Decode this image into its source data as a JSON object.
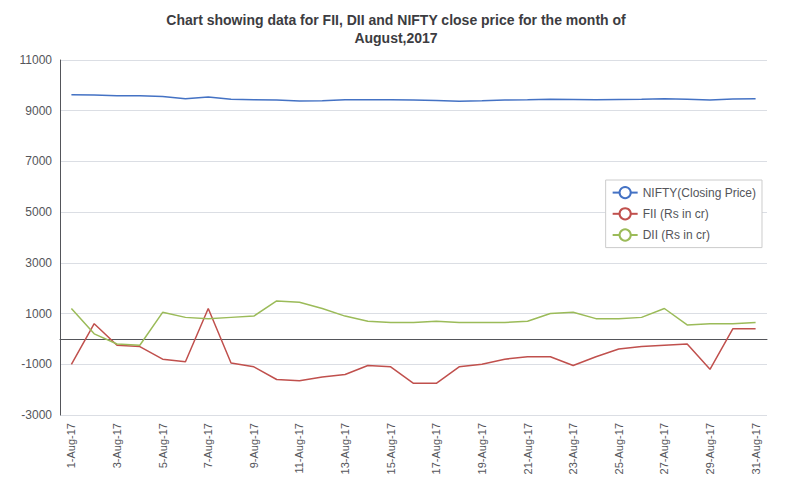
{
  "chart_data": {
    "type": "line",
    "title": "Chart showing data for FII, DII and NIFTY close price for the month of\nAugust,2017",
    "categories": [
      "1-Aug-17",
      null,
      "3-Aug-17",
      null,
      "5-Aug-17",
      null,
      "7-Aug-17",
      null,
      "9-Aug-17",
      null,
      "11-Aug-17",
      null,
      "13-Aug-17",
      null,
      "15-Aug-17",
      null,
      "17-Aug-17",
      null,
      "19-Aug-17",
      null,
      "21-Aug-17",
      null,
      "23-Aug-17",
      null,
      "25-Aug-17",
      null,
      "27-Aug-17",
      null,
      "29-Aug-17",
      null,
      "31-Aug-17"
    ],
    "series": [
      {
        "name": "NIFTY(Closing Price)",
        "color": "#4472C4",
        "values": [
          9630,
          9620,
          9590,
          9590,
          9560,
          9470,
          9540,
          9450,
          9430,
          9420,
          9380,
          9390,
          9430,
          9430,
          9430,
          9420,
          9400,
          9370,
          9390,
          9420,
          9430,
          9450,
          9440,
          9430,
          9440,
          9450,
          9470,
          9450,
          9420,
          9460,
          9470
        ]
      },
      {
        "name": "FII (Rs in cr)",
        "color": "#C0504D",
        "values": [
          -1000,
          600,
          -250,
          -300,
          -800,
          -900,
          1200,
          -950,
          -1100,
          -1600,
          -1650,
          -1500,
          -1400,
          -1050,
          -1100,
          -1750,
          -1750,
          -1100,
          -1000,
          -800,
          -700,
          -700,
          -1050,
          -700,
          -400,
          -300,
          -250,
          -200,
          -1200,
          400,
          400
        ]
      },
      {
        "name": "DII (Rs in cr)",
        "color": "#9BBB59",
        "values": [
          1200,
          200,
          -200,
          -250,
          1050,
          850,
          800,
          850,
          900,
          1500,
          1450,
          1200,
          900,
          700,
          650,
          650,
          700,
          650,
          650,
          650,
          700,
          1000,
          1050,
          800,
          800,
          850,
          1200,
          550,
          600,
          600,
          650
        ]
      }
    ],
    "ylim": [
      -3000,
      11000
    ],
    "yticks": [
      -3000,
      -1000,
      1000,
      3000,
      5000,
      7000,
      9000,
      11000
    ],
    "grid": true,
    "legend": "right"
  }
}
